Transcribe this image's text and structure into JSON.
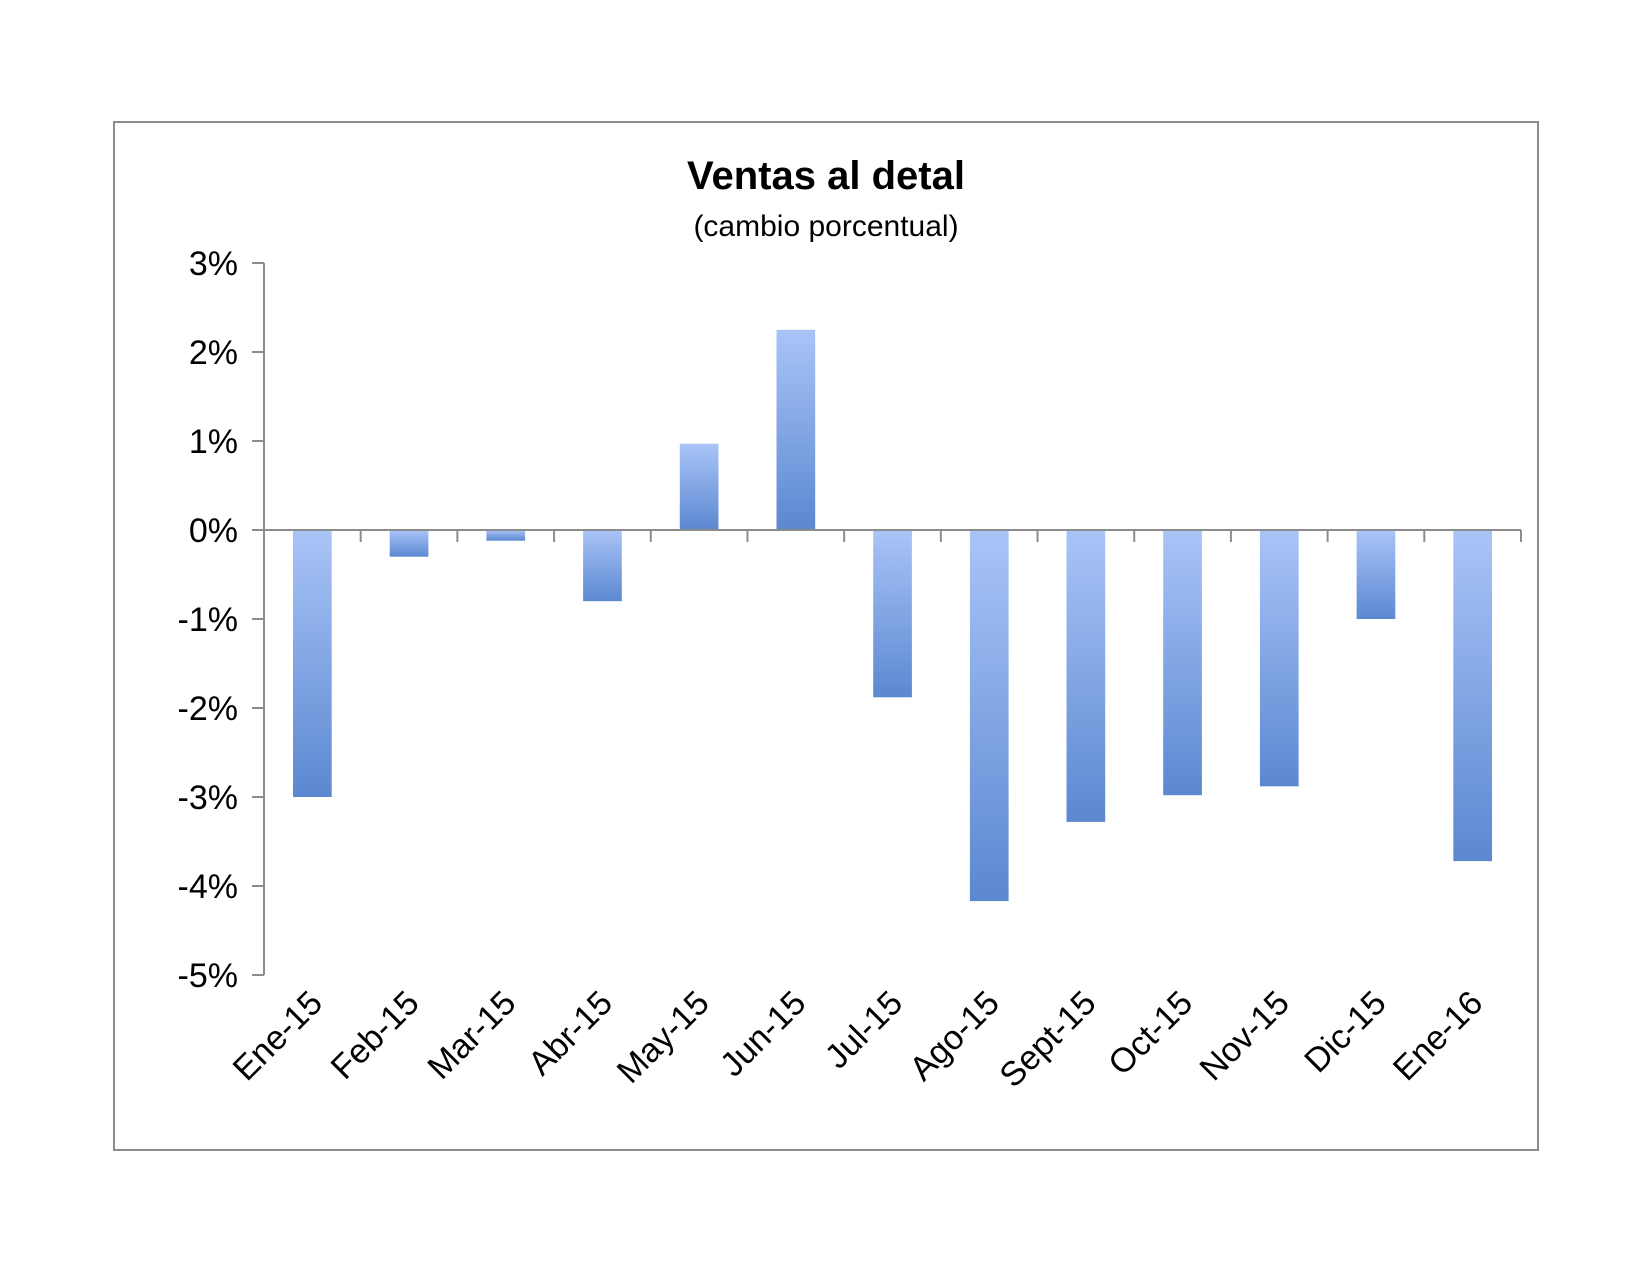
{
  "chart_data": {
    "type": "bar",
    "title": "Ventas al detal",
    "subtitle": "(cambio porcentual)",
    "xlabel": "",
    "ylabel": "",
    "categories": [
      "Ene-15",
      "Feb-15",
      "Mar-15",
      "Abr-15",
      "May-15",
      "Jun-15",
      "Jul-15",
      "Ago-15",
      "Sept-15",
      "Oct-15",
      "Nov-15",
      "Dic-15",
      "Ene-16"
    ],
    "values": [
      -3.0,
      -0.3,
      -0.12,
      -0.8,
      0.97,
      2.25,
      -1.88,
      -4.17,
      -3.28,
      -2.98,
      -2.88,
      -1.0,
      -3.72
    ],
    "ylim": [
      -5,
      3
    ],
    "yticks": [
      3,
      2,
      1,
      0,
      -1,
      -2,
      -3,
      -4,
      -5
    ],
    "ytick_labels": [
      "3%",
      "2%",
      "1%",
      "0%",
      "-1%",
      "-2%",
      "-3%",
      "-4%",
      "-5%"
    ],
    "grid": false,
    "legend": "none",
    "bar_color_light": "#a9c4f7",
    "bar_color_dark": "#5c88d1"
  }
}
